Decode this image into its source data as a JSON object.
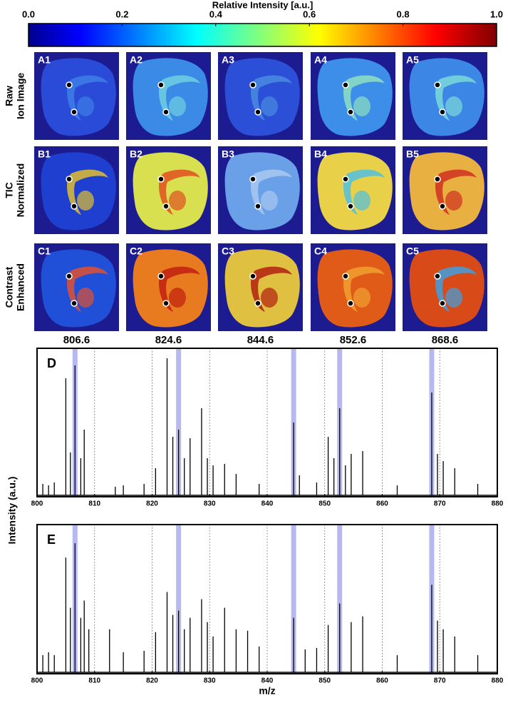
{
  "chart_data": [
    {
      "type": "colorbar",
      "title": "Relative Intensity [a.u.]",
      "xlim": [
        0,
        1
      ],
      "xticks": [
        {
          "value": 0,
          "label": "0.0"
        },
        0.2,
        0.4,
        0.6,
        0.8,
        {
          "value": 1,
          "label": "1.0"
        }
      ]
    },
    {
      "type": "image-grid",
      "row_labels": [
        [
          "Raw",
          "Ion Image"
        ],
        [
          "TIC",
          "Normalized"
        ],
        [
          "Contrast",
          "Enhanced"
        ]
      ],
      "columns": [
        "806.6",
        "824.6",
        "844.6",
        "852.6",
        "868.6"
      ],
      "panels": [
        [
          {
            "label": "A1",
            "color": "#2a4ad8",
            "accent": "#3d7ee6"
          },
          {
            "label": "A2",
            "color": "#3b8be6",
            "accent": "#6fd0e0"
          },
          {
            "label": "A3",
            "color": "#2b4fd6",
            "accent": "#4a8be0"
          },
          {
            "label": "A4",
            "color": "#3d8ee8",
            "accent": "#8ee0c0"
          },
          {
            "label": "A5",
            "color": "#3c86e6",
            "accent": "#7ad8d8"
          }
        ],
        [
          {
            "label": "B1",
            "color": "#1e3fd0",
            "accent": "#e0c030"
          },
          {
            "label": "B2",
            "color": "#d8e050",
            "accent": "#e05020"
          },
          {
            "label": "B3",
            "color": "#6aa0e8",
            "accent": "#a8c8f0"
          },
          {
            "label": "B4",
            "color": "#e8d048",
            "accent": "#50c0e0"
          },
          {
            "label": "B5",
            "color": "#e8b040",
            "accent": "#d03020"
          }
        ],
        [
          {
            "label": "C1",
            "color": "#2050d8",
            "accent": "#e05030"
          },
          {
            "label": "C2",
            "color": "#e87a20",
            "accent": "#c02010"
          },
          {
            "label": "C3",
            "color": "#e0c040",
            "accent": "#b02010"
          },
          {
            "label": "C4",
            "color": "#e05a18",
            "accent": "#f0a030"
          },
          {
            "label": "C5",
            "color": "#d84a18",
            "accent": "#40a0e0"
          }
        ]
      ]
    },
    {
      "type": "spectrum",
      "label": "D",
      "ylabel": "Intensity (a.u.)",
      "color": "#000000",
      "highlight_color": "#b8b8f0",
      "xlim": [
        800,
        880
      ],
      "xticks": [
        800,
        810,
        820,
        830,
        840,
        850,
        860,
        870,
        880
      ],
      "ylim": [
        0,
        1
      ],
      "grid": true,
      "highlights": [
        806.6,
        824.6,
        844.6,
        852.6,
        868.6
      ],
      "x": [
        801,
        802,
        803,
        805,
        805.8,
        806.6,
        807.6,
        808.2,
        813.6,
        815,
        818.6,
        820.6,
        822.6,
        823.6,
        824.6,
        825.6,
        826.6,
        828.6,
        829.6,
        830.6,
        832.6,
        834.6,
        838.6,
        844.6,
        845.6,
        848.6,
        850.6,
        851.6,
        852.6,
        853.6,
        854.6,
        856.6,
        862.6,
        868.6,
        869.6,
        870.6,
        872.6,
        876.6
      ],
      "values": [
        0.08,
        0.07,
        0.09,
        0.82,
        0.3,
        0.91,
        0.26,
        0.46,
        0.06,
        0.07,
        0.08,
        0.19,
        0.96,
        0.41,
        0.46,
        0.26,
        0.4,
        0.61,
        0.26,
        0.21,
        0.22,
        0.15,
        0.08,
        0.51,
        0.14,
        0.09,
        0.41,
        0.26,
        0.61,
        0.21,
        0.29,
        0.31,
        0.07,
        0.72,
        0.29,
        0.24,
        0.19,
        0.08
      ]
    },
    {
      "type": "spectrum",
      "label": "E",
      "xlabel": "m/z",
      "color": "#000000",
      "highlight_color": "#b8b8f0",
      "xlim": [
        800,
        880
      ],
      "xticks": [
        800,
        810,
        820,
        830,
        840,
        850,
        860,
        870,
        880
      ],
      "ylim": [
        0,
        1
      ],
      "grid": true,
      "highlights": [
        806.6,
        824.6,
        844.6,
        852.6,
        868.6
      ],
      "x": [
        801,
        802,
        803,
        805,
        805.8,
        806.6,
        807.6,
        808.2,
        809,
        812.6,
        815,
        818.6,
        820.6,
        822.6,
        823.6,
        824.6,
        825.6,
        826.6,
        828.6,
        829.6,
        830.6,
        832.6,
        834.6,
        836.6,
        838.6,
        844.6,
        846.6,
        848.6,
        850.6,
        852.6,
        854.6,
        856.6,
        862.6,
        868.6,
        869.6,
        870.6,
        872.6,
        876.6
      ],
      "values": [
        0.12,
        0.14,
        0.12,
        0.8,
        0.45,
        0.9,
        0.38,
        0.5,
        0.3,
        0.3,
        0.14,
        0.15,
        0.28,
        0.56,
        0.4,
        0.43,
        0.3,
        0.38,
        0.51,
        0.35,
        0.25,
        0.45,
        0.3,
        0.29,
        0.18,
        0.38,
        0.16,
        0.17,
        0.33,
        0.48,
        0.35,
        0.39,
        0.12,
        0.61,
        0.36,
        0.3,
        0.25,
        0.12
      ]
    }
  ]
}
